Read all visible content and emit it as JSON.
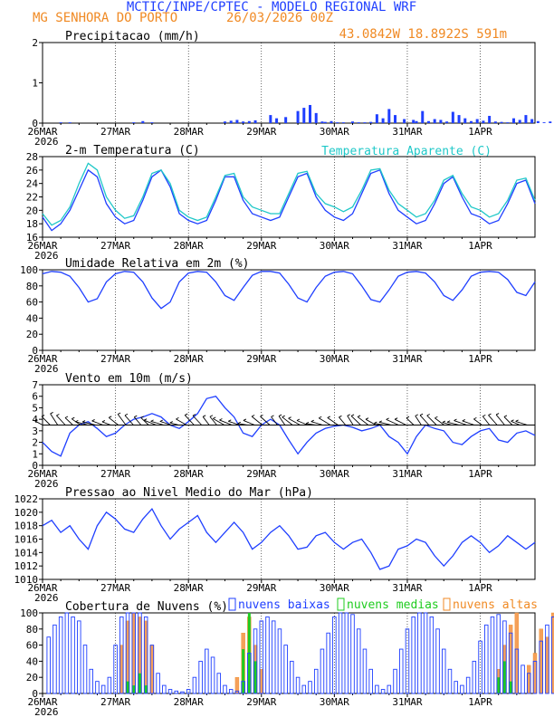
{
  "header": {
    "title": "MCTIC/INPE/CPTEC - MODELO REGIONAL WRF",
    "location": "MG SENHORA DO PORTO",
    "run": "26/03/2026 00Z",
    "coords": "43.0842W 18.8922S 591m"
  },
  "colors": {
    "blue": "#1f3fff",
    "orange": "#f08a24",
    "cyan": "#1fc8c8",
    "green": "#1fcc1f",
    "bar_orange": "#f5a05a"
  },
  "x_axis": {
    "year_label": "2026",
    "tick_labels": [
      "26MAR",
      "27MAR",
      "28MAR",
      "29MAR",
      "30MAR",
      "31MAR",
      "1APR"
    ]
  },
  "chart_data": [
    {
      "id": "precip",
      "type": "bar",
      "title": "Precipitacao (mm/h)",
      "ylim": [
        0,
        2
      ],
      "yticks": [
        "0",
        "1",
        "2"
      ],
      "x_unit": "hours since 26MAR 00Z",
      "series": [
        {
          "name": "Precipitacao",
          "x": [
            6,
            9,
            30,
            33,
            36,
            60,
            62,
            64,
            66,
            68,
            70,
            75,
            77,
            80,
            84,
            86,
            88,
            90,
            92,
            93,
            95,
            97,
            99,
            102,
            104,
            106,
            108,
            110,
            112,
            114,
            116,
            119,
            122,
            123,
            125,
            127,
            129,
            131,
            133,
            135,
            137,
            139,
            141,
            143,
            145,
            147,
            149,
            151,
            153,
            155,
            157,
            159,
            161,
            163,
            165,
            167,
            169,
            171,
            173,
            175,
            177,
            179,
            181,
            183,
            185,
            187,
            189
          ],
          "values": [
            0.02,
            0.02,
            0.02,
            0.05,
            0.02,
            0.04,
            0.06,
            0.08,
            0.04,
            0.05,
            0.07,
            0.2,
            0.12,
            0.15,
            0.3,
            0.38,
            0.45,
            0.25,
            0.04,
            0.03,
            0.05,
            0.02,
            0.02,
            0.04,
            0.02,
            0.02,
            0.03,
            0.22,
            0.12,
            0.35,
            0.2,
            0.1,
            0.08,
            0.05,
            0.3,
            0.05,
            0.1,
            0.08,
            0.04,
            0.28,
            0.2,
            0.12,
            0.05,
            0.1,
            0.06,
            0.18,
            0.04,
            0.03,
            0.02,
            0.12,
            0.08,
            0.2,
            0.1,
            0.05,
            0.02,
            0.04,
            0.02,
            0.03,
            0.05,
            0.1,
            0.08,
            0.48,
            0.15,
            0.06,
            0.3,
            0.1,
            0.02
          ]
        }
      ]
    },
    {
      "id": "temp",
      "type": "line",
      "title": "2-m Temperatura (C)",
      "legend": "Temperatura Aparente (C)",
      "ylim": [
        16,
        28
      ],
      "yticks": [
        "16",
        "18",
        "20",
        "22",
        "24",
        "26",
        "28"
      ],
      "x_step_hours": 3,
      "series": [
        {
          "name": "2-m Temperatura",
          "color": "blue",
          "values": [
            19.0,
            17.0,
            18.0,
            20.0,
            23.0,
            26.0,
            25.0,
            21.0,
            19.0,
            18.0,
            18.5,
            21.5,
            25.0,
            26.0,
            23.5,
            19.5,
            18.5,
            18.0,
            18.5,
            21.5,
            25.0,
            25.0,
            21.5,
            19.5,
            19.0,
            18.5,
            19.0,
            22.0,
            25.0,
            25.5,
            22.0,
            20.0,
            19.0,
            18.5,
            19.5,
            22.5,
            25.5,
            26.0,
            22.5,
            20.0,
            19.0,
            18.0,
            18.5,
            21.0,
            24.0,
            25.0,
            22.0,
            19.5,
            19.0,
            18.0,
            18.5,
            21.0,
            24.0,
            24.5,
            21.0
          ]
        },
        {
          "name": "Temperatura Aparente",
          "color": "cyan",
          "values": [
            19.5,
            17.8,
            18.5,
            20.5,
            24.0,
            27.0,
            26.0,
            22.0,
            20.0,
            18.8,
            19.2,
            22.0,
            25.5,
            26.0,
            24.0,
            20.0,
            19.0,
            18.5,
            19.0,
            22.0,
            25.2,
            25.5,
            22.0,
            20.5,
            20.0,
            19.5,
            19.5,
            22.5,
            25.5,
            25.8,
            22.5,
            21.0,
            20.5,
            19.8,
            20.5,
            23.0,
            26.0,
            26.2,
            23.0,
            21.0,
            20.0,
            19.0,
            19.5,
            21.5,
            24.5,
            25.2,
            22.5,
            20.5,
            20.0,
            19.0,
            19.5,
            21.5,
            24.5,
            24.8,
            21.5
          ]
        }
      ]
    },
    {
      "id": "rh",
      "type": "line",
      "title": "Umidade Relativa em 2m (%)",
      "ylim": [
        0,
        100
      ],
      "yticks": [
        "0",
        "20",
        "40",
        "60",
        "80",
        "100"
      ],
      "x_step_hours": 3,
      "series": [
        {
          "name": "Umidade Relativa",
          "color": "blue",
          "values": [
            95,
            98,
            97,
            92,
            78,
            60,
            64,
            85,
            95,
            98,
            97,
            85,
            65,
            52,
            60,
            85,
            96,
            98,
            97,
            85,
            68,
            62,
            78,
            93,
            98,
            98,
            96,
            82,
            65,
            60,
            78,
            92,
            97,
            98,
            95,
            80,
            63,
            60,
            75,
            92,
            97,
            98,
            96,
            85,
            68,
            62,
            75,
            92,
            97,
            98,
            97,
            88,
            72,
            68,
            85
          ]
        }
      ]
    },
    {
      "id": "wind",
      "type": "line",
      "title": "Vento em 10m (m/s)",
      "ylim": [
        0,
        7
      ],
      "yticks": [
        "0",
        "1",
        "2",
        "3",
        "4",
        "5",
        "6",
        "7"
      ],
      "x_step_hours": 3,
      "series": [
        {
          "name": "Vento em 10m",
          "color": "blue",
          "values": [
            2.0,
            1.2,
            0.8,
            2.8,
            3.5,
            3.8,
            3.2,
            2.5,
            2.8,
            3.5,
            4.0,
            4.2,
            4.5,
            4.2,
            3.5,
            3.2,
            3.8,
            4.5,
            5.8,
            6.0,
            5.0,
            4.2,
            2.8,
            2.5,
            3.5,
            4.0,
            3.5,
            2.2,
            1.0,
            2.0,
            2.8,
            3.2,
            3.4,
            3.5,
            3.3,
            3.0,
            3.2,
            3.5,
            2.5,
            2.0,
            1.0,
            2.5,
            3.5,
            3.2,
            3.0,
            2.0,
            1.8,
            2.5,
            3.0,
            3.2,
            2.2,
            2.0,
            2.8,
            3.0,
            2.6
          ]
        }
      ],
      "arrows": {
        "baseline": 3.5,
        "count": 65
      }
    },
    {
      "id": "pres",
      "type": "line",
      "title": "Pressao ao Nivel Medio do Mar (hPa)",
      "ylim": [
        1010,
        1022
      ],
      "yticks": [
        "1010",
        "1012",
        "1014",
        "1016",
        "1018",
        "1020",
        "1022"
      ],
      "x_step_hours": 3,
      "series": [
        {
          "name": "Pressao",
          "color": "blue",
          "values": [
            1018,
            1018.8,
            1017,
            1018,
            1016,
            1014.5,
            1018,
            1020,
            1019,
            1017.5,
            1017,
            1019,
            1020.5,
            1018,
            1016,
            1017.5,
            1018.5,
            1019.5,
            1017,
            1015.5,
            1017,
            1018.5,
            1017,
            1014.5,
            1015.5,
            1017,
            1018,
            1016.5,
            1014.5,
            1014.8,
            1016.5,
            1017,
            1015.5,
            1014.5,
            1015.5,
            1016,
            1014,
            1011.5,
            1012,
            1014.5,
            1015,
            1016,
            1015.5,
            1013.5,
            1012,
            1013.5,
            1015.5,
            1016.5,
            1015.5,
            1014,
            1015,
            1016.5,
            1015.5,
            1014.5,
            1015.5
          ]
        }
      ]
    },
    {
      "id": "clouds",
      "type": "bar",
      "title": "Cobertura de Nuvens (%)",
      "ylim": [
        0,
        100
      ],
      "yticks": [
        "0",
        "20",
        "40",
        "60",
        "80",
        "100"
      ],
      "x_unit": "hours since 26MAR 00Z",
      "legend": [
        "nuvens baixas",
        "nuvens medias",
        "nuvens altas"
      ],
      "series": [
        {
          "name": "nuvens baixas",
          "color": "blue",
          "x": [
            2,
            4,
            6,
            8,
            10,
            12,
            14,
            16,
            18,
            20,
            22,
            24,
            26,
            28,
            30,
            32,
            34,
            36,
            38,
            40,
            42,
            44,
            46,
            48,
            50,
            52,
            54,
            56,
            58,
            60,
            62,
            64,
            66,
            68,
            70,
            72,
            74,
            76,
            78,
            80,
            82,
            84,
            86,
            88,
            90,
            92,
            94,
            96,
            98,
            100,
            102,
            104,
            106,
            108,
            110,
            112,
            114,
            116,
            118,
            120,
            122,
            124,
            126,
            128,
            130,
            132,
            134,
            136,
            138,
            140,
            142,
            144,
            146,
            148,
            150,
            152,
            154,
            156,
            158,
            160,
            162,
            164,
            166,
            168,
            170,
            172,
            174,
            176,
            178,
            180,
            182,
            184,
            186,
            188,
            190
          ],
          "values": [
            70,
            85,
            95,
            100,
            95,
            90,
            60,
            30,
            15,
            10,
            20,
            60,
            95,
            100,
            100,
            100,
            95,
            60,
            25,
            10,
            5,
            3,
            2,
            5,
            20,
            40,
            55,
            45,
            25,
            10,
            5,
            3,
            15,
            50,
            80,
            90,
            95,
            90,
            80,
            60,
            40,
            20,
            10,
            15,
            30,
            55,
            75,
            95,
            100,
            100,
            98,
            80,
            55,
            30,
            10,
            5,
            10,
            30,
            55,
            80,
            95,
            100,
            100,
            95,
            80,
            55,
            30,
            15,
            10,
            20,
            40,
            65,
            85,
            95,
            98,
            90,
            75,
            55,
            35,
            25,
            40,
            65,
            85,
            95,
            100,
            98,
            95,
            85,
            70,
            60,
            55,
            45,
            40,
            35,
            30
          ]
        },
        {
          "name": "nuvens medias",
          "color": "green",
          "x": [
            28,
            30,
            32,
            34,
            66,
            68,
            70,
            150,
            152,
            154,
            170,
            172,
            174,
            180,
            182,
            184,
            186
          ],
          "values": [
            15,
            10,
            25,
            10,
            55,
            100,
            40,
            20,
            40,
            15,
            10,
            25,
            15,
            10,
            20,
            100,
            30
          ]
        },
        {
          "name": "nuvens altas",
          "color": "orange",
          "x": [
            26,
            28,
            30,
            32,
            34,
            36,
            64,
            66,
            68,
            70,
            72,
            150,
            152,
            154,
            156,
            160,
            162,
            164,
            166,
            168,
            170,
            172,
            174,
            176,
            178,
            180,
            182,
            184,
            186,
            188
          ],
          "values": [
            60,
            90,
            100,
            95,
            90,
            60,
            20,
            75,
            95,
            60,
            30,
            30,
            60,
            85,
            100,
            35,
            50,
            80,
            70,
            100,
            90,
            100,
            75,
            95,
            100,
            85,
            90,
            100,
            100,
            80
          ]
        }
      ]
    }
  ]
}
